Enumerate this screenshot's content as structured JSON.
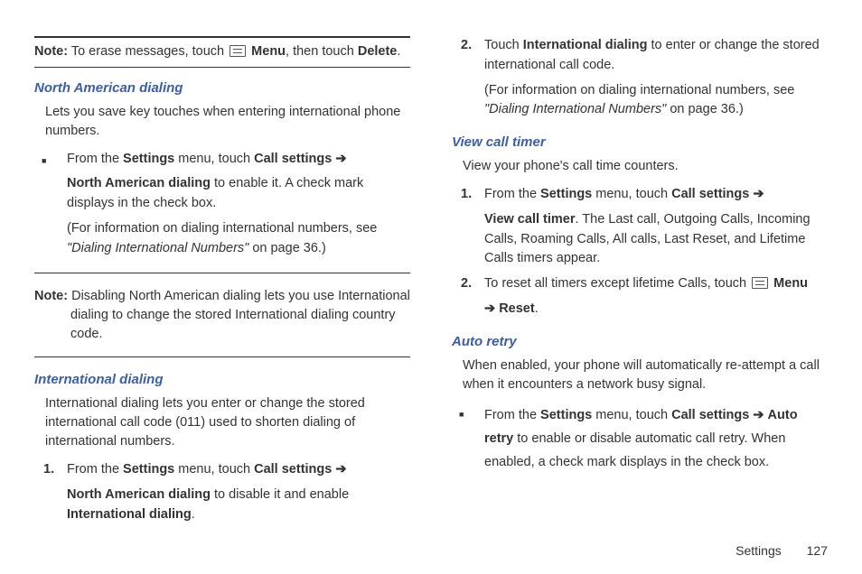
{
  "left": {
    "note1": {
      "label": "Note:",
      "text_a": "To erase messages, touch ",
      "bold_b": "Menu",
      "text_c": ", then touch ",
      "bold_d": "Delete",
      "text_e": "."
    },
    "nad": {
      "heading": "North American dialing",
      "intro": "Lets you save key touches when entering international phone numbers.",
      "li_a": "From the ",
      "li_b": "Settings",
      "li_c": " menu, touch ",
      "li_d": "Call settings ",
      "arrow": "➔",
      "li_e": "North American dialing",
      "li_f": " to enable it. A check mark displays in the check box.",
      "paren_a": "(For information on dialing international numbers, see ",
      "paren_b": "\"Dialing International Numbers\"",
      "paren_c": " on page 36.)"
    },
    "note2": {
      "label": "Note:",
      "body": " Disabling North American dialing lets you use International dialing to change the stored International dialing country code."
    },
    "intl": {
      "heading": "International dialing",
      "intro": "International dialing lets you enter or change the stored international call code (011) used to shorten dialing of international numbers.",
      "s1_a": "From the ",
      "s1_b": "Settings",
      "s1_c": " menu, touch ",
      "s1_d": "Call settings ",
      "s1_arrow": "➔",
      "s1_e": "North American dialing",
      "s1_f": " to disable it and enable ",
      "s1_g": "International dialing",
      "s1_h": "."
    }
  },
  "right": {
    "s2_a": "Touch ",
    "s2_b": "International dialing",
    "s2_c": " to enter or change the stored international call code.",
    "s2_paren_a": "(For information on dialing international numbers, see ",
    "s2_paren_b": "\"Dialing International Numbers\"",
    "s2_paren_c": " on page 36.)",
    "vct": {
      "heading": "View call timer",
      "intro": "View your phone's call time counters.",
      "s1_a": "From the ",
      "s1_b": "Settings",
      "s1_c": " menu, touch ",
      "s1_d": "Call settings ",
      "s1_arrow": "➔",
      "s1_e": "View call timer",
      "s1_f": ". The Last call, Outgoing Calls, Incoming Calls, Roaming Calls, All calls, Last Reset, and Lifetime Calls timers appear.",
      "s2_a": "To reset all timers except lifetime Calls, touch ",
      "s2_b": "Menu",
      "s2_arrow": "➔",
      "s2_c": "Reset",
      "s2_d": "."
    },
    "auto": {
      "heading": "Auto retry",
      "intro": "When enabled, your phone will automatically re-attempt a call when it encounters a network busy signal.",
      "li_a": "From the ",
      "li_b": "Settings",
      "li_c": " menu, touch ",
      "li_d": "Call settings ",
      "li_arrow": "➔",
      "li_e": "Auto retry",
      "li_f": " to enable or disable automatic call retry. When enabled, a check mark displays in the check box."
    }
  },
  "footer": {
    "section": "Settings",
    "page": "127"
  }
}
